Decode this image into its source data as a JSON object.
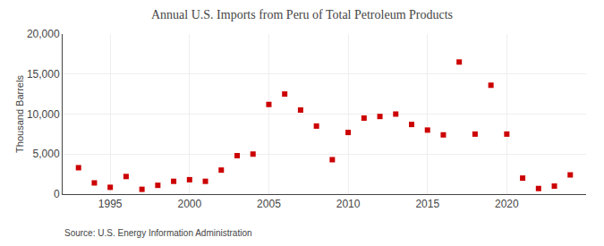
{
  "chart_data": {
    "type": "scatter",
    "title": "Annual U.S. Imports from Peru of Total Petroleum Products",
    "ylabel": "Thousand Barrels",
    "annotations": [
      "Source: U.S. Energy Information Administration"
    ],
    "x": [
      1993,
      1994,
      1995,
      1996,
      1997,
      1998,
      1999,
      2000,
      2001,
      2002,
      2003,
      2004,
      2005,
      2006,
      2007,
      2008,
      2009,
      2010,
      2011,
      2012,
      2013,
      2014,
      2015,
      2016,
      2017,
      2018,
      2019,
      2020,
      2021,
      2022,
      2023,
      2024
    ],
    "values": [
      3300,
      1400,
      850,
      2200,
      600,
      1100,
      1600,
      1800,
      1600,
      3000,
      4800,
      5000,
      11200,
      12500,
      10500,
      8500,
      4300,
      7700,
      9500,
      9700,
      10000,
      8700,
      8000,
      7400,
      16500,
      7500,
      13600,
      7500,
      2000,
      700,
      1000,
      2400
    ],
    "color": "#cc0000",
    "marker": "square",
    "xlim": [
      1992,
      2025
    ],
    "xticks": [
      1995,
      2000,
      2005,
      2010,
      2015,
      2020
    ],
    "ylim": [
      0,
      20000
    ],
    "yticks": [
      0,
      {
        "value": 5000,
        "label": "5,000"
      },
      {
        "value": 10000,
        "label": "10,000"
      },
      {
        "value": 15000,
        "label": "15,000"
      },
      {
        "value": 20000,
        "label": "20,000"
      }
    ],
    "grid": true
  }
}
